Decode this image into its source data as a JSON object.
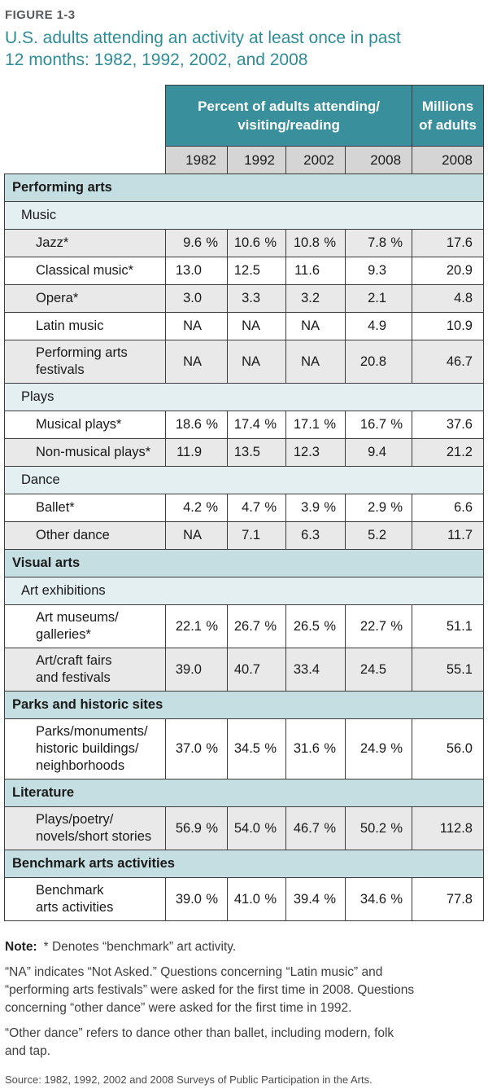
{
  "figure": {
    "label": "FIGURE 1-3",
    "title": "U.S. adults attending an activity at least once in past\n12 months: 1982, 1992, 2002, and 2008"
  },
  "table": {
    "percent_group_header": "Percent of adults attending/\nvisiting/reading",
    "millions_group_header": "Millions\nof adults",
    "years": [
      "1982",
      "1992",
      "2002",
      "2008"
    ],
    "millions_year": "2008",
    "percent_symbol": "%",
    "rows": [
      {
        "type": "section",
        "label": "Performing arts"
      },
      {
        "type": "subsection",
        "label": "Music"
      },
      {
        "type": "data",
        "label": "Jazz*",
        "values": [
          "9.6",
          "10.6",
          "10.8",
          "7.8"
        ],
        "millions": "17.6",
        "pct": true
      },
      {
        "type": "data",
        "label": "Classical music*",
        "values": [
          "13.0",
          "12.5",
          "11.6",
          "9.3"
        ],
        "millions": "20.9",
        "pct": false
      },
      {
        "type": "data",
        "label": "Opera*",
        "values": [
          "3.0",
          "3.3",
          "3.2",
          "2.1"
        ],
        "millions": "4.8",
        "pct": false
      },
      {
        "type": "data",
        "label": "Latin music",
        "values": [
          "NA",
          "NA",
          "NA",
          "4.9"
        ],
        "millions": "10.9",
        "pct": false
      },
      {
        "type": "data",
        "label": "Performing arts\nfestivals",
        "values": [
          "NA",
          "NA",
          "NA",
          "20.8"
        ],
        "millions": "46.7",
        "pct": false
      },
      {
        "type": "subsection",
        "label": "Plays"
      },
      {
        "type": "data",
        "label": "Musical plays*",
        "values": [
          "18.6",
          "17.4",
          "17.1",
          "16.7"
        ],
        "millions": "37.6",
        "pct": true
      },
      {
        "type": "data",
        "label": "Non-musical plays*",
        "values": [
          "11.9",
          "13.5",
          "12.3",
          "9.4"
        ],
        "millions": "21.2",
        "pct": false
      },
      {
        "type": "subsection",
        "label": "Dance"
      },
      {
        "type": "data",
        "label": "Ballet*",
        "values": [
          "4.2",
          "4.7",
          "3.9",
          "2.9"
        ],
        "millions": "6.6",
        "pct": true
      },
      {
        "type": "data",
        "label": "Other dance",
        "values": [
          "NA",
          "7.1",
          "6.3",
          "5.2"
        ],
        "millions": "11.7",
        "pct": false
      },
      {
        "type": "section",
        "label": "Visual arts"
      },
      {
        "type": "subsection",
        "label": "Art exhibitions"
      },
      {
        "type": "data",
        "label": "Art museums/\ngalleries*",
        "values": [
          "22.1",
          "26.7",
          "26.5",
          "22.7"
        ],
        "millions": "51.1",
        "pct": true
      },
      {
        "type": "data",
        "label": "Art/craft fairs\nand festivals",
        "values": [
          "39.0",
          "40.7",
          "33.4",
          "24.5"
        ],
        "millions": "55.1",
        "pct": false
      },
      {
        "type": "section",
        "label": "Parks and historic sites"
      },
      {
        "type": "data",
        "label": "Parks/monuments/\nhistoric buildings/\nneighborhoods",
        "values": [
          "37.0",
          "34.5",
          "31.6",
          "24.9"
        ],
        "millions": "56.0",
        "pct": true
      },
      {
        "type": "section",
        "label": "Literature"
      },
      {
        "type": "data",
        "label": "Plays/poetry/\nnovels/short stories",
        "values": [
          "56.9",
          "54.0",
          "46.7",
          "50.2"
        ],
        "millions": "112.8",
        "pct": true
      },
      {
        "type": "section",
        "label": "Benchmark arts activities"
      },
      {
        "type": "data",
        "label": "Benchmark\narts activities",
        "values": [
          "39.0",
          "41.0",
          "39.4",
          "34.6"
        ],
        "millions": "77.8",
        "pct": true
      }
    ]
  },
  "notes": {
    "label": "Note:",
    "benchmark": "* Denotes “benchmark” art activity.",
    "na": "“NA” indicates “Not Asked.” Questions concerning “Latin music” and\n“performing arts festivals” were asked for the first time in 2008. Questions\nconcerning “other dance” were asked for the first time in 1992.",
    "other_dance": "“Other dance” refers to dance other than ballet, including modern, folk\nand tap.",
    "source": "Source: 1982, 1992, 2002 and 2008 Surveys of Public Participation in the Arts."
  },
  "colors": {
    "header_teal": "#39909c",
    "section_bg": "#c4dee2",
    "subsection_bg": "#e4eff1",
    "row_gray": "#e9e9e9",
    "row_white": "#ffffff",
    "year_cell_bg": "#d5d5d5",
    "border": "#3c3c3c",
    "title_teal": "#2e8c99",
    "figure_label_gray": "#58595b"
  }
}
